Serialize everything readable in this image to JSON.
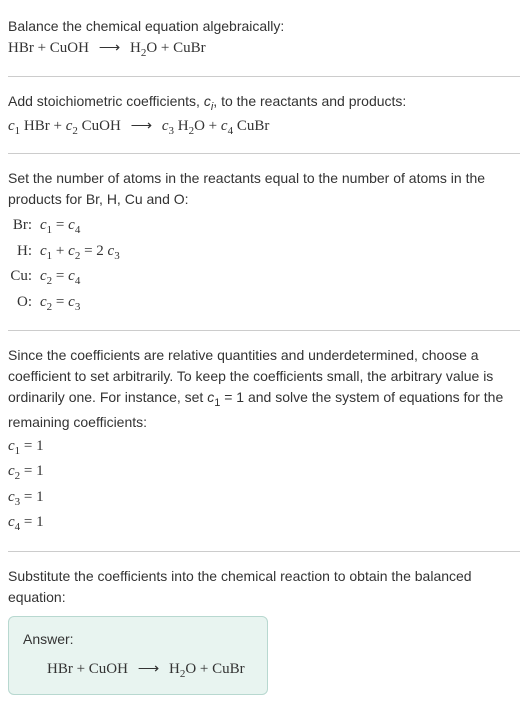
{
  "intro": {
    "line1": "Balance the chemical equation algebraically:",
    "eq_left1": "HBr + CuOH",
    "eq_right1": "H",
    "eq_right1b": "O + CuBr",
    "sub2": "2"
  },
  "step1": {
    "text_a": "Add stoichiometric coefficients, ",
    "text_b": ", to the reactants and products:",
    "c": "c",
    "i": "i",
    "c1": "c",
    "n1": "1",
    "sp1": " HBr + ",
    "c2": "c",
    "n2": "2",
    "sp2": " CuOH",
    "c3": "c",
    "n3": "3",
    "sp3": " H",
    "sub2": "2",
    "sp3b": "O + ",
    "c4": "c",
    "n4": "4",
    "sp4": " CuBr"
  },
  "step2": {
    "text": "Set the number of atoms in the reactants equal to the number of atoms in the products for Br, H, Cu and O:",
    "rows": [
      {
        "label": "Br:",
        "lhs_a": "c",
        "lhs_an": "1",
        "eq": " = ",
        "rhs_a": "c",
        "rhs_an": "4"
      },
      {
        "label": "H:",
        "lhs_a": "c",
        "lhs_an": "1",
        "mid": " + ",
        "lhs_b": "c",
        "lhs_bn": "2",
        "eq": " = 2 ",
        "rhs_a": "c",
        "rhs_an": "3"
      },
      {
        "label": "Cu:",
        "lhs_a": "c",
        "lhs_an": "2",
        "eq": " = ",
        "rhs_a": "c",
        "rhs_an": "4"
      },
      {
        "label": "O:",
        "lhs_a": "c",
        "lhs_an": "2",
        "eq": " = ",
        "rhs_a": "c",
        "rhs_an": "3"
      }
    ]
  },
  "step3": {
    "text_a": "Since the coefficients are relative quantities and underdetermined, choose a coefficient to set arbitrarily. To keep the coefficients small, the arbitrary value is ordinarily one. For instance, set ",
    "c": "c",
    "n1": "1",
    "text_b": " = 1 and solve the system of equations for the remaining coefficients:",
    "coeffs": [
      {
        "c": "c",
        "n": "1",
        "val": " = 1"
      },
      {
        "c": "c",
        "n": "2",
        "val": " = 1"
      },
      {
        "c": "c",
        "n": "3",
        "val": " = 1"
      },
      {
        "c": "c",
        "n": "4",
        "val": " = 1"
      }
    ]
  },
  "step4": {
    "text": "Substitute the coefficients into the chemical reaction to obtain the balanced equation:",
    "answer_label": "Answer:",
    "ans_left": "HBr + CuOH",
    "ans_right_a": "H",
    "ans_sub": "2",
    "ans_right_b": "O + CuBr"
  },
  "arrow": "⟶"
}
